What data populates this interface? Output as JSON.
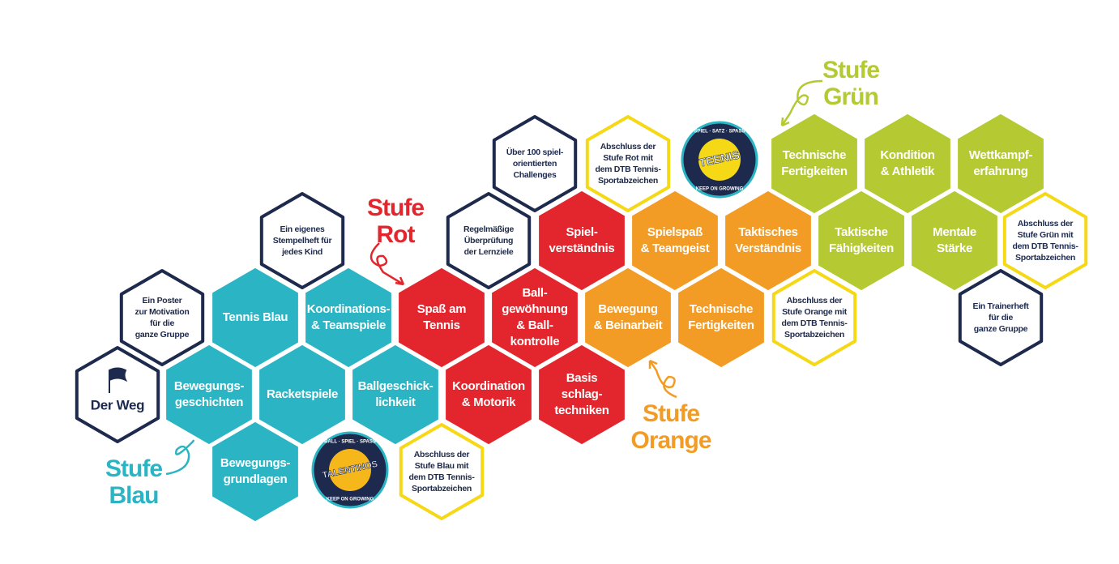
{
  "stages": [
    {
      "lines": [
        "Stufe",
        "Blau"
      ]
    },
    {
      "lines": [
        "Stufe",
        "Rot"
      ]
    },
    {
      "lines": [
        "Stufe",
        "Orange"
      ]
    },
    {
      "lines": [
        "Stufe",
        "Grün"
      ]
    }
  ],
  "hexes": [
    {
      "lines": [
        "Der Weg"
      ]
    },
    {
      "lines": [
        "Ein Poster",
        "zur Motivation",
        "für die",
        "ganze Gruppe"
      ]
    },
    {
      "lines": [
        "Ein eigenes",
        "Stempelheft für",
        "jedes Kind"
      ]
    },
    {
      "lines": [
        "Regelmäßige",
        "Überprüfung",
        "der Lernziele"
      ]
    },
    {
      "lines": [
        "Über 100 spiel-",
        "orientierten",
        "Challenges"
      ]
    },
    {
      "lines": [
        "Ein Trainerheft",
        "für die",
        "ganze Gruppe"
      ]
    },
    {
      "lines": [
        "Tennis Blau"
      ]
    },
    {
      "lines": [
        "Koordinations-",
        "& Teamspiele"
      ]
    },
    {
      "lines": [
        "Bewegungs-",
        "geschichten"
      ]
    },
    {
      "lines": [
        "Racketspiele"
      ]
    },
    {
      "lines": [
        "Ballgeschick-",
        "lichkeit"
      ]
    },
    {
      "lines": [
        "Bewegungs-",
        "grundlagen"
      ]
    },
    {
      "lines": [
        "Spaß am",
        "Tennis"
      ]
    },
    {
      "lines": [
        "Ball-",
        "gewöhnung",
        "& Ball-",
        "kontrolle"
      ]
    },
    {
      "lines": [
        "Koordination",
        "& Motorik"
      ]
    },
    {
      "lines": [
        "Basis",
        "schlag-",
        "techniken"
      ]
    },
    {
      "lines": [
        "Spiel-",
        "verständnis"
      ]
    },
    {
      "lines": [
        "Spielspaß",
        "& Teamgeist"
      ]
    },
    {
      "lines": [
        "Taktisches",
        "Verständnis"
      ]
    },
    {
      "lines": [
        "Bewegung",
        "& Beinarbeit"
      ]
    },
    {
      "lines": [
        "Technische",
        "Fertigkeiten"
      ]
    },
    {
      "lines": [
        "Technische",
        "Fertigkeiten"
      ]
    },
    {
      "lines": [
        "Kondition",
        "& Athletik"
      ]
    },
    {
      "lines": [
        "Wettkampf-",
        "erfahrung"
      ]
    },
    {
      "lines": [
        "Taktische",
        "Fähigkeiten"
      ]
    },
    {
      "lines": [
        "Mentale",
        "Stärke"
      ]
    },
    {
      "lines": [
        "Abschluss der",
        "Stufe Blau mit",
        "dem DTB Tennis-",
        "Sportabzeichen"
      ]
    },
    {
      "lines": [
        "Abschluss der",
        "Stufe Rot mit",
        "dem DTB Tennis-",
        "Sportabzeichen"
      ]
    },
    {
      "lines": [
        "Abschluss der",
        "Stufe Orange mit",
        "dem DTB Tennis-",
        "Sportabzeichen"
      ]
    },
    {
      "lines": [
        "Abschluss der",
        "Stufe Grün mit",
        "dem DTB Tennis-",
        "Sportabzeichen"
      ]
    }
  ],
  "logos": [
    {
      "name": "TALENTINOS",
      "motto": "BALL · SPIEL · SPASS",
      "tagline": "KEEP ON GROWING"
    },
    {
      "name": "TEENIS",
      "motto": "SPIEL · SATZ · SPASS",
      "tagline": "KEEP ON GROWING"
    }
  ]
}
